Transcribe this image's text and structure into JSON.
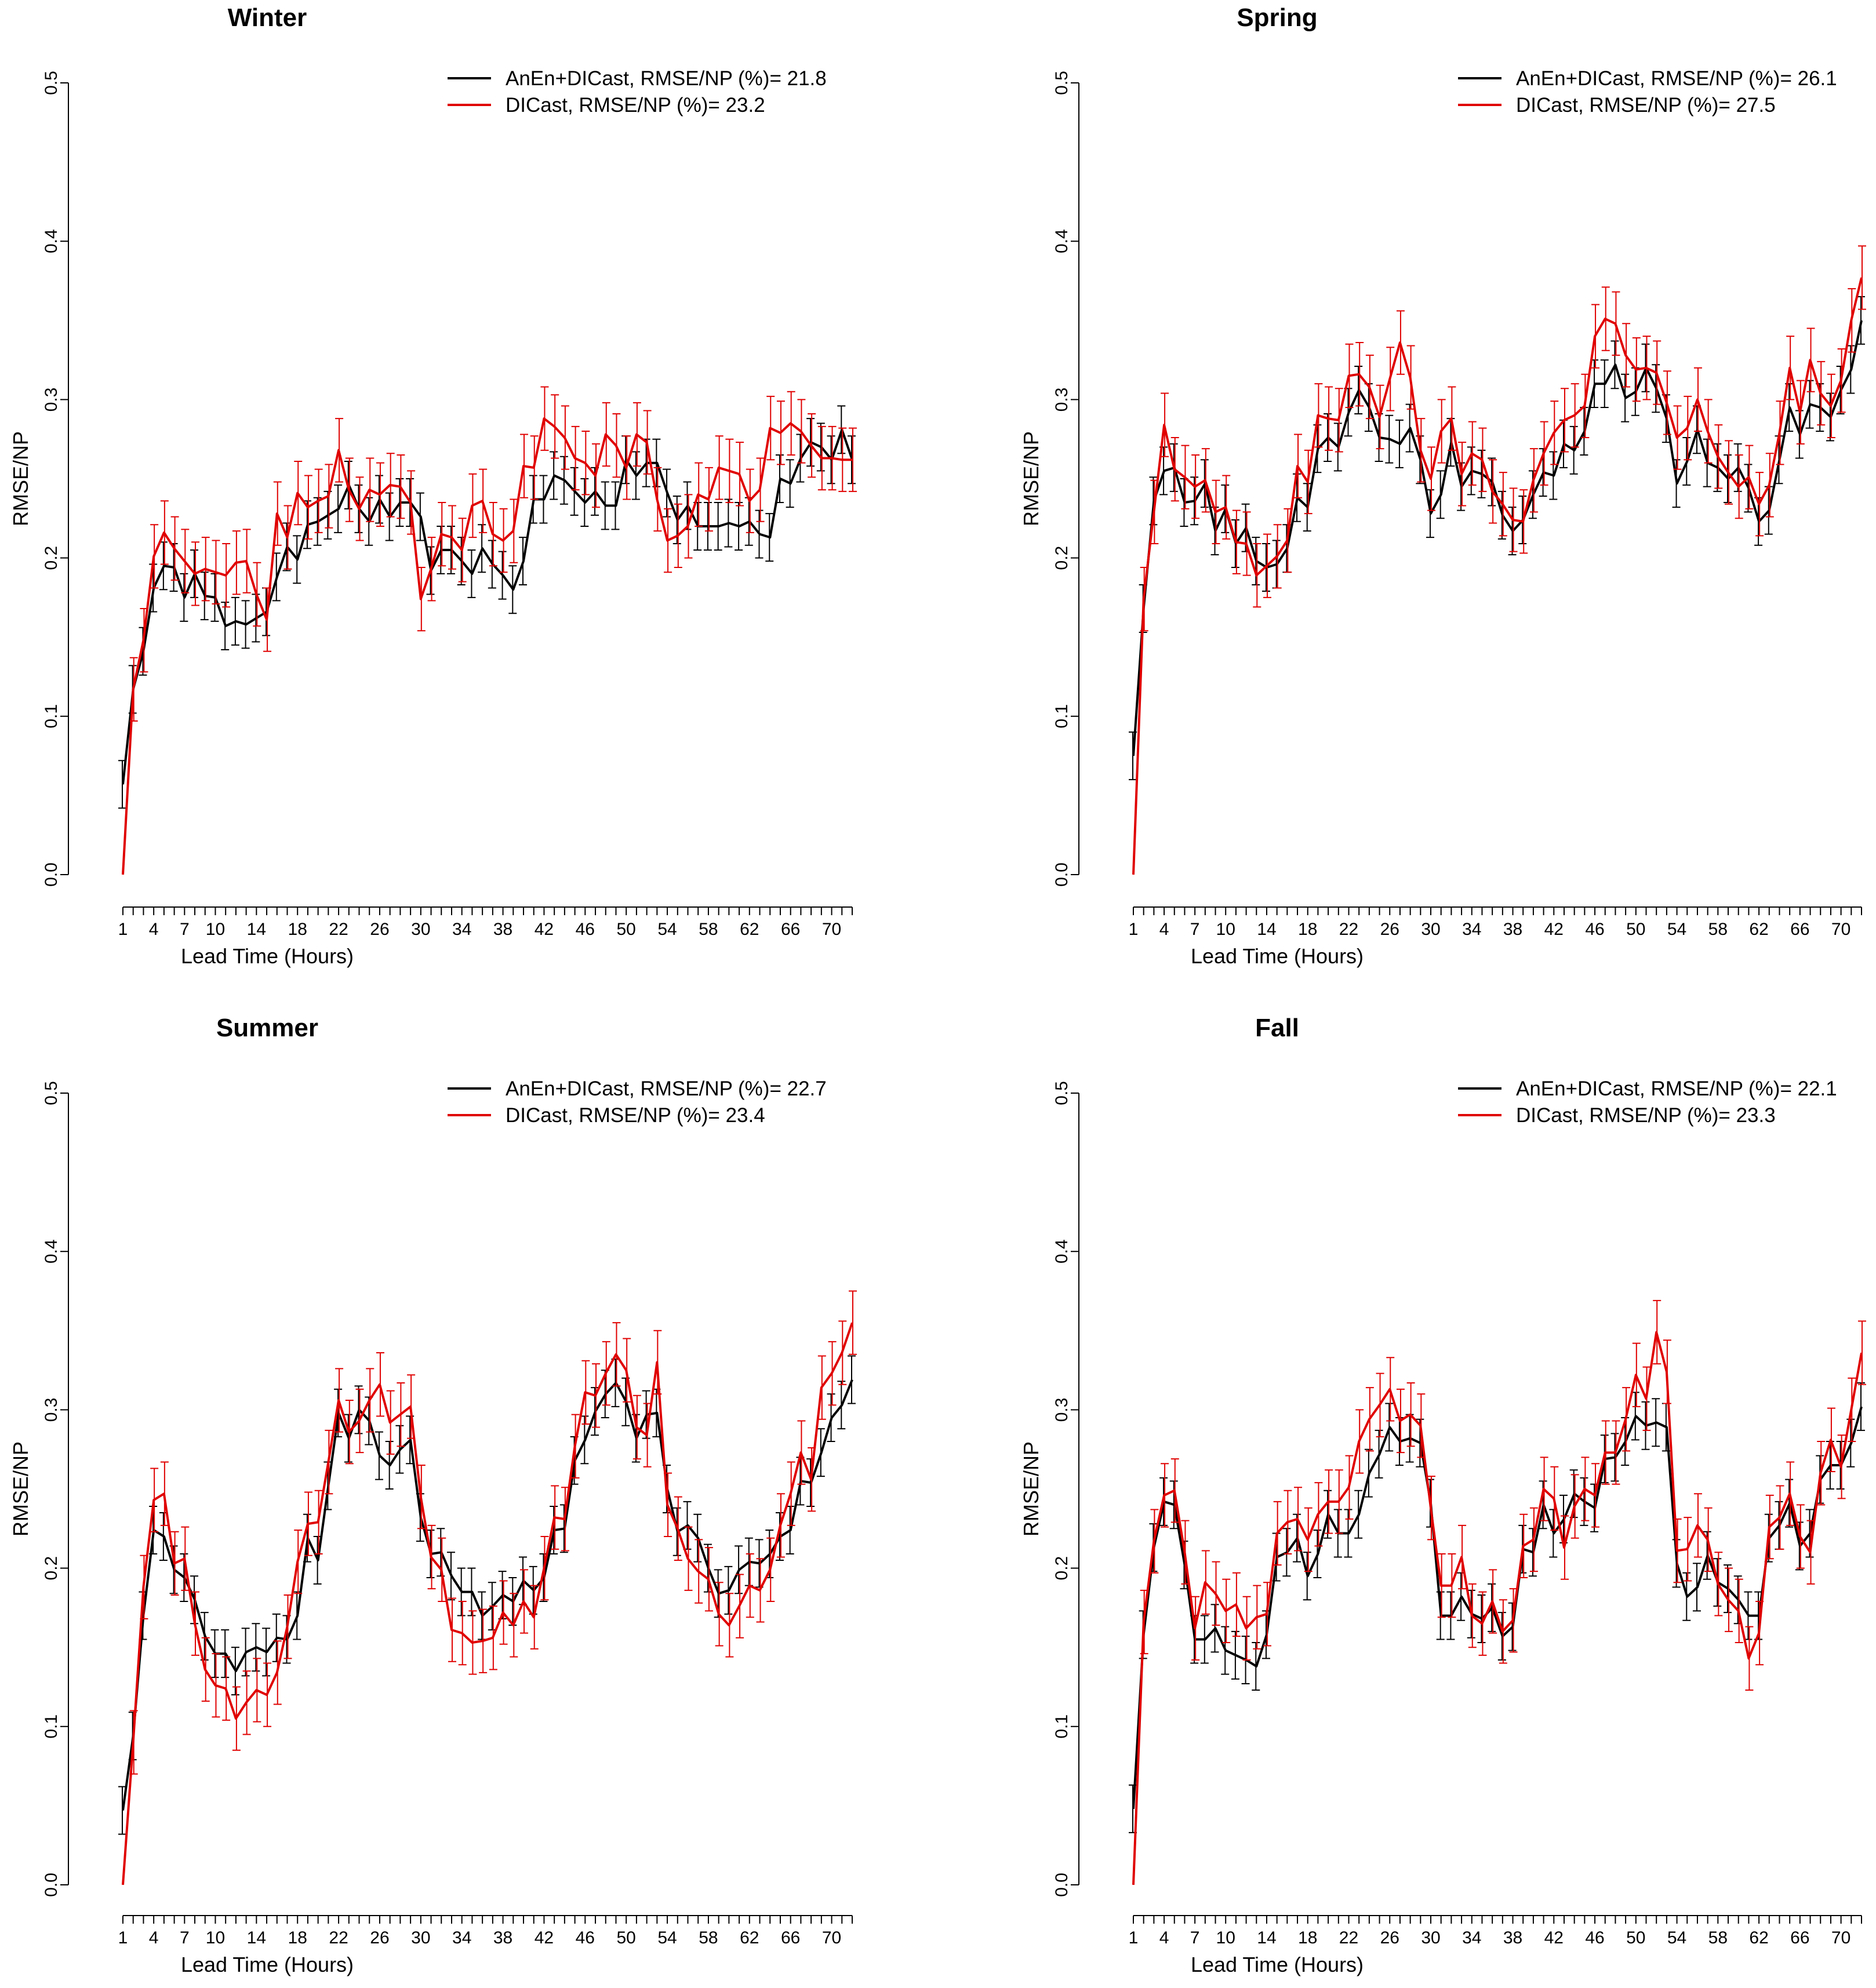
{
  "chart_data": [
    {
      "type": "line",
      "title": "Winter",
      "xlabel": "Lead Time (Hours)",
      "ylabel": "RMSE/NP",
      "xlim": [
        1,
        72
      ],
      "ylim": [
        0,
        0.5
      ],
      "yticks": [
        "0.0",
        "0.1",
        "0.2",
        "0.3",
        "0.4",
        "0.5"
      ],
      "xticks": [
        "1",
        "4",
        "7",
        "10",
        "14",
        "18",
        "22",
        "26",
        "30",
        "34",
        "38",
        "42",
        "46",
        "50",
        "54",
        "58",
        "62",
        "66",
        "70"
      ],
      "legend": {
        "position": "top-right",
        "entries": [
          "AnEn+DICast,  RMSE/NP (%)= 21.8",
          "DICast,  RMSE/NP (%)= 23.2"
        ]
      },
      "series": [
        {
          "name": "AnEn+DICast",
          "color": "#000000",
          "err": 0.015,
          "values": [
            0.057,
            0.117,
            0.141,
            0.181,
            0.195,
            0.194,
            0.175,
            0.19,
            0.176,
            0.175,
            0.157,
            0.16,
            0.158,
            0.162,
            0.166,
            0.188,
            0.207,
            0.199,
            0.221,
            0.223,
            0.227,
            0.231,
            0.246,
            0.231,
            0.223,
            0.237,
            0.226,
            0.235,
            0.235,
            0.226,
            0.192,
            0.205,
            0.205,
            0.198,
            0.19,
            0.206,
            0.196,
            0.189,
            0.18,
            0.198,
            0.237,
            0.237,
            0.252,
            0.249,
            0.242,
            0.235,
            0.242,
            0.233,
            0.233,
            0.262,
            0.252,
            0.26,
            0.26,
            0.241,
            0.224,
            0.233,
            0.22,
            0.22,
            0.22,
            0.222,
            0.22,
            0.223,
            0.215,
            0.213,
            0.25,
            0.247,
            0.263,
            0.273,
            0.27,
            0.262,
            0.281,
            0.262
          ]
        },
        {
          "name": "DICast",
          "color": "#e00000",
          "err": 0.02,
          "values": [
            0.0,
            0.117,
            0.148,
            0.201,
            0.216,
            0.206,
            0.198,
            0.19,
            0.193,
            0.191,
            0.189,
            0.197,
            0.198,
            0.177,
            0.161,
            0.228,
            0.213,
            0.241,
            0.232,
            0.236,
            0.239,
            0.268,
            0.243,
            0.231,
            0.243,
            0.24,
            0.246,
            0.245,
            0.235,
            0.174,
            0.193,
            0.215,
            0.213,
            0.205,
            0.233,
            0.236,
            0.215,
            0.211,
            0.217,
            0.258,
            0.257,
            0.288,
            0.283,
            0.276,
            0.263,
            0.26,
            0.252,
            0.278,
            0.271,
            0.257,
            0.278,
            0.273,
            0.237,
            0.211,
            0.214,
            0.22,
            0.24,
            0.237,
            0.257,
            0.255,
            0.253,
            0.236,
            0.243,
            0.282,
            0.279,
            0.285,
            0.28,
            0.271,
            0.263,
            0.263,
            0.262,
            0.262
          ]
        }
      ]
    },
    {
      "type": "line",
      "title": "Spring",
      "xlabel": "Lead Time (Hours)",
      "ylabel": "RMSE/NP",
      "xlim": [
        1,
        72
      ],
      "ylim": [
        0,
        0.5
      ],
      "yticks": [
        "0.0",
        "0.1",
        "0.2",
        "0.3",
        "0.4",
        "0.5"
      ],
      "xticks": [
        "1",
        "4",
        "7",
        "10",
        "14",
        "18",
        "22",
        "26",
        "30",
        "34",
        "38",
        "42",
        "46",
        "50",
        "54",
        "58",
        "62",
        "66",
        "70"
      ],
      "legend": {
        "position": "top-right",
        "entries": [
          "AnEn+DICast,  RMSE/NP (%)= 26.1",
          "DICast,  RMSE/NP (%)= 27.5"
        ]
      },
      "series": [
        {
          "name": "AnEn+DICast",
          "color": "#000000",
          "err": 0.015,
          "values": [
            0.075,
            0.168,
            0.236,
            0.255,
            0.257,
            0.235,
            0.236,
            0.247,
            0.217,
            0.231,
            0.209,
            0.219,
            0.198,
            0.194,
            0.196,
            0.206,
            0.238,
            0.232,
            0.269,
            0.276,
            0.27,
            0.292,
            0.306,
            0.295,
            0.276,
            0.275,
            0.272,
            0.282,
            0.262,
            0.228,
            0.24,
            0.273,
            0.245,
            0.255,
            0.253,
            0.248,
            0.227,
            0.217,
            0.224,
            0.24,
            0.254,
            0.252,
            0.272,
            0.268,
            0.28,
            0.31,
            0.31,
            0.322,
            0.301,
            0.305,
            0.32,
            0.307,
            0.288,
            0.247,
            0.261,
            0.281,
            0.26,
            0.257,
            0.25,
            0.257,
            0.244,
            0.223,
            0.23,
            0.262,
            0.295,
            0.278,
            0.297,
            0.295,
            0.289,
            0.306,
            0.319,
            0.35
          ]
        },
        {
          "name": "DICast",
          "color": "#e00000",
          "err": 0.02,
          "values": [
            0.0,
            0.174,
            0.229,
            0.284,
            0.256,
            0.251,
            0.245,
            0.249,
            0.229,
            0.232,
            0.21,
            0.209,
            0.189,
            0.195,
            0.201,
            0.211,
            0.258,
            0.248,
            0.29,
            0.288,
            0.287,
            0.315,
            0.316,
            0.308,
            0.289,
            0.313,
            0.336,
            0.314,
            0.268,
            0.25,
            0.28,
            0.288,
            0.253,
            0.266,
            0.262,
            0.242,
            0.234,
            0.224,
            0.223,
            0.249,
            0.266,
            0.279,
            0.287,
            0.29,
            0.296,
            0.34,
            0.351,
            0.348,
            0.328,
            0.319,
            0.32,
            0.317,
            0.298,
            0.276,
            0.282,
            0.3,
            0.28,
            0.264,
            0.254,
            0.245,
            0.251,
            0.234,
            0.246,
            0.279,
            0.32,
            0.292,
            0.325,
            0.304,
            0.296,
            0.312,
            0.35,
            0.377
          ]
        }
      ]
    },
    {
      "type": "line",
      "title": "Summer",
      "xlabel": "Lead Time (Hours)",
      "ylabel": "RMSE/NP",
      "xlim": [
        1,
        72
      ],
      "ylim": [
        0,
        0.5
      ],
      "yticks": [
        "0.0",
        "0.1",
        "0.2",
        "0.3",
        "0.4",
        "0.5"
      ],
      "xticks": [
        "1",
        "4",
        "7",
        "10",
        "14",
        "18",
        "22",
        "26",
        "30",
        "34",
        "38",
        "42",
        "46",
        "50",
        "54",
        "58",
        "62",
        "66",
        "70"
      ],
      "legend": {
        "position": "top-right",
        "entries": [
          "AnEn+DICast, RMSE/NP (%)= 22.7",
          "DICast,  RMSE/NP (%)= 23.4"
        ]
      },
      "series": [
        {
          "name": "AnEn+DICast",
          "color": "#000000",
          "err": 0.015,
          "values": [
            0.047,
            0.094,
            0.17,
            0.224,
            0.22,
            0.199,
            0.194,
            0.18,
            0.157,
            0.146,
            0.146,
            0.135,
            0.147,
            0.15,
            0.147,
            0.156,
            0.155,
            0.17,
            0.219,
            0.205,
            0.252,
            0.298,
            0.282,
            0.3,
            0.293,
            0.271,
            0.265,
            0.275,
            0.281,
            0.232,
            0.209,
            0.21,
            0.195,
            0.185,
            0.185,
            0.17,
            0.176,
            0.183,
            0.179,
            0.192,
            0.186,
            0.194,
            0.224,
            0.225,
            0.268,
            0.281,
            0.299,
            0.31,
            0.317,
            0.305,
            0.282,
            0.297,
            0.298,
            0.25,
            0.223,
            0.227,
            0.219,
            0.2,
            0.184,
            0.186,
            0.199,
            0.204,
            0.203,
            0.209,
            0.22,
            0.224,
            0.255,
            0.254,
            0.273,
            0.295,
            0.303,
            0.319
          ]
        },
        {
          "name": "DICast",
          "color": "#e00000",
          "err": 0.02,
          "values": [
            0.0,
            0.09,
            0.188,
            0.243,
            0.247,
            0.203,
            0.206,
            0.165,
            0.136,
            0.126,
            0.124,
            0.105,
            0.115,
            0.123,
            0.12,
            0.134,
            0.163,
            0.204,
            0.228,
            0.229,
            0.267,
            0.306,
            0.286,
            0.293,
            0.306,
            0.316,
            0.292,
            0.297,
            0.302,
            0.245,
            0.207,
            0.199,
            0.161,
            0.159,
            0.153,
            0.154,
            0.156,
            0.172,
            0.164,
            0.179,
            0.169,
            0.2,
            0.232,
            0.231,
            0.277,
            0.311,
            0.309,
            0.323,
            0.335,
            0.325,
            0.289,
            0.284,
            0.33,
            0.24,
            0.225,
            0.206,
            0.198,
            0.193,
            0.171,
            0.164,
            0.176,
            0.189,
            0.186,
            0.199,
            0.227,
            0.247,
            0.273,
            0.256,
            0.314,
            0.323,
            0.336,
            0.355
          ]
        }
      ]
    },
    {
      "type": "line",
      "title": "Fall",
      "xlabel": "Lead Time (Hours)",
      "ylabel": "RMSE/NP",
      "xlim": [
        1,
        72
      ],
      "ylim": [
        0,
        0.5
      ],
      "yticks": [
        "0.0",
        "0.1",
        "0.2",
        "0.3",
        "0.4",
        "0.5"
      ],
      "xticks": [
        "1",
        "4",
        "7",
        "10",
        "14",
        "18",
        "22",
        "26",
        "30",
        "34",
        "38",
        "42",
        "46",
        "50",
        "54",
        "58",
        "62",
        "66",
        "70"
      ],
      "legend": {
        "position": "top-right",
        "entries": [
          "AnEn+DICast,  RMSE/NP (%)= 22.1",
          "DICast,  RMSE/NP (%)= 23.3"
        ]
      },
      "series": [
        {
          "name": "AnEn+DICast",
          "color": "#000000",
          "err": 0.015,
          "values": [
            0.048,
            0.158,
            0.213,
            0.242,
            0.24,
            0.202,
            0.155,
            0.155,
            0.162,
            0.148,
            0.145,
            0.142,
            0.138,
            0.158,
            0.207,
            0.21,
            0.219,
            0.195,
            0.209,
            0.234,
            0.222,
            0.222,
            0.234,
            0.26,
            0.272,
            0.289,
            0.28,
            0.282,
            0.279,
            0.241,
            0.17,
            0.17,
            0.182,
            0.171,
            0.168,
            0.175,
            0.157,
            0.163,
            0.212,
            0.21,
            0.24,
            0.222,
            0.231,
            0.247,
            0.242,
            0.238,
            0.269,
            0.27,
            0.28,
            0.296,
            0.29,
            0.292,
            0.289,
            0.203,
            0.182,
            0.188,
            0.208,
            0.191,
            0.187,
            0.18,
            0.17,
            0.17,
            0.219,
            0.227,
            0.241,
            0.214,
            0.222,
            0.256,
            0.265,
            0.265,
            0.279,
            0.302
          ]
        },
        {
          "name": "DICast",
          "color": "#e00000",
          "err": 0.02,
          "values": [
            0.0,
            0.166,
            0.217,
            0.246,
            0.249,
            0.21,
            0.162,
            0.191,
            0.184,
            0.173,
            0.177,
            0.162,
            0.169,
            0.171,
            0.222,
            0.229,
            0.231,
            0.218,
            0.234,
            0.242,
            0.242,
            0.251,
            0.28,
            0.294,
            0.303,
            0.313,
            0.293,
            0.297,
            0.29,
            0.238,
            0.189,
            0.189,
            0.207,
            0.17,
            0.165,
            0.179,
            0.16,
            0.167,
            0.214,
            0.218,
            0.25,
            0.244,
            0.213,
            0.239,
            0.25,
            0.246,
            0.273,
            0.273,
            0.294,
            0.322,
            0.307,
            0.349,
            0.324,
            0.211,
            0.212,
            0.227,
            0.218,
            0.19,
            0.18,
            0.173,
            0.143,
            0.159,
            0.226,
            0.232,
            0.247,
            0.22,
            0.21,
            0.26,
            0.281,
            0.264,
            0.3,
            0.336
          ]
        }
      ]
    }
  ]
}
